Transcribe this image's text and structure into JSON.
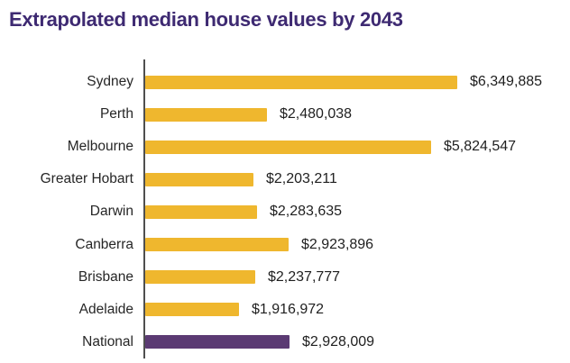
{
  "title": {
    "text": "Extrapolated median house values by 2043",
    "color": "#3E2A72"
  },
  "chart_data": {
    "type": "bar",
    "orientation": "horizontal",
    "title": "Extrapolated median house values by 2043",
    "xlabel": "",
    "ylabel": "",
    "xlim": [
      0,
      6500000
    ],
    "grid": false,
    "legend": false,
    "categories": [
      "Sydney",
      "Perth",
      "Melbourne",
      "Greater Hobart",
      "Darwin",
      "Canberra",
      "Brisbane",
      "Adelaide",
      "National"
    ],
    "values": [
      6349885,
      2480038,
      5824547,
      2203211,
      2283635,
      2923896,
      2237777,
      1916972,
      2928009
    ],
    "value_labels": [
      "$6,349,885",
      "$2,480,038",
      "$5,824,547",
      "$2,203,211",
      "$2,283,635",
      "$2,923,896",
      "$2,237,777",
      "$1,916,972",
      "$2,928,009"
    ],
    "bar_colors": [
      "#EFB72E",
      "#EFB72E",
      "#EFB72E",
      "#EFB72E",
      "#EFB72E",
      "#EFB72E",
      "#EFB72E",
      "#EFB72E",
      "#5B3A73"
    ],
    "colors": {
      "bar_default": "#EFB72E",
      "bar_national": "#5B3A73",
      "title": "#3E2A72",
      "axis_line": "#4f4f4f",
      "category_text": "#262626",
      "value_text": "#1f1f1f"
    }
  }
}
